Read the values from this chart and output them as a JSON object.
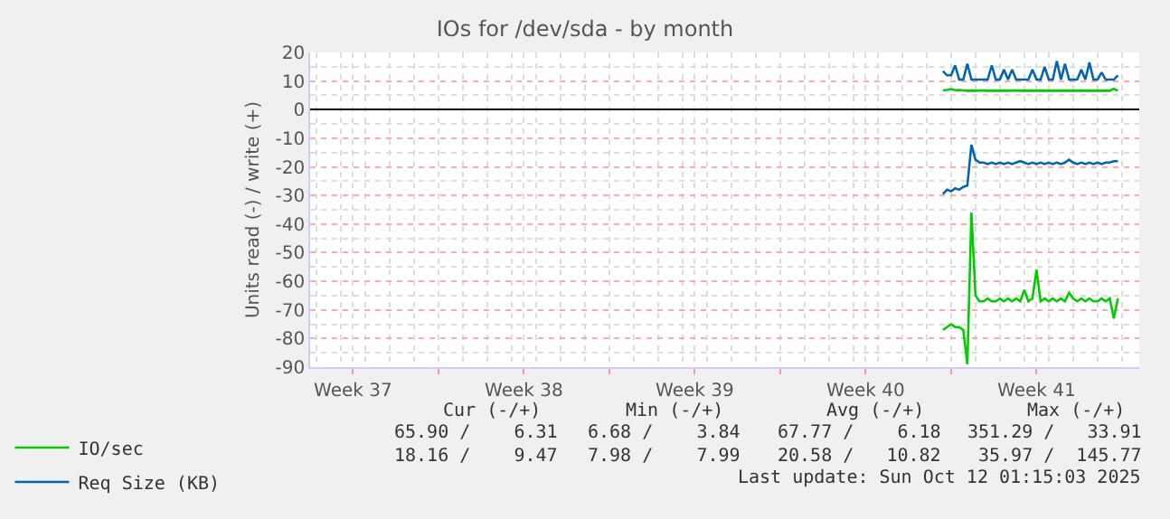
{
  "chart_data": {
    "type": "line",
    "title": "IOs for /dev/sda - by month",
    "ylabel": "Units read (-) / write (+)",
    "x": [
      "2025-10-05T16:00",
      "2025-10-05T20:00",
      "2025-10-06T00:00",
      "2025-10-06T04:00",
      "2025-10-06T08:00",
      "2025-10-06T12:00",
      "2025-10-06T16:00",
      "2025-10-06T20:00",
      "2025-10-07T00:00",
      "2025-10-07T04:00",
      "2025-10-07T08:00",
      "2025-10-07T12:00",
      "2025-10-07T16:00",
      "2025-10-07T20:00",
      "2025-10-08T00:00",
      "2025-10-08T04:00",
      "2025-10-08T08:00",
      "2025-10-08T12:00",
      "2025-10-08T16:00",
      "2025-10-08T20:00",
      "2025-10-09T00:00",
      "2025-10-09T04:00",
      "2025-10-09T08:00",
      "2025-10-09T12:00",
      "2025-10-09T16:00",
      "2025-10-09T20:00",
      "2025-10-10T00:00",
      "2025-10-10T04:00",
      "2025-10-10T08:00",
      "2025-10-10T12:00",
      "2025-10-10T16:00",
      "2025-10-10T20:00",
      "2025-10-11T00:00",
      "2025-10-11T04:00",
      "2025-10-11T08:00",
      "2025-10-11T12:00",
      "2025-10-11T16:00",
      "2025-10-11T20:00",
      "2025-10-12T00:00",
      "2025-10-12T04:00",
      "2025-10-12T08:00",
      "2025-10-12T12:00",
      "2025-10-12T16:00",
      "2025-10-12T20:00"
    ],
    "series": [
      {
        "name": "IO/sec",
        "color": "#00cc00",
        "values": [
          -77,
          -76,
          -75,
          -76,
          -76,
          -77,
          -89,
          -36,
          -65,
          -67,
          -67,
          -66,
          -67,
          -67,
          -66,
          -67,
          -66,
          -67,
          -66,
          -67,
          -63,
          -67,
          -66,
          -56,
          -67,
          -66,
          -67,
          -66,
          -67,
          -66,
          -67,
          -64,
          -66,
          -67,
          -66,
          -67,
          -66,
          -67,
          -67,
          -66,
          -67,
          -66,
          -73,
          -66
        ]
      },
      {
        "color": "#00cc00",
        "values": [
          6.8,
          6.9,
          7.2,
          6.8,
          6.9,
          6.7,
          6.6,
          6.7,
          6.6,
          6.7,
          6.7,
          6.6,
          6.7,
          6.6,
          6.6,
          6.7,
          6.6,
          6.7,
          6.7,
          6.6,
          6.7,
          6.6,
          6.7,
          6.6,
          6.7,
          6.6,
          6.7,
          6.6,
          6.7,
          6.6,
          6.7,
          6.6,
          6.7,
          6.6,
          6.7,
          6.6,
          6.7,
          6.6,
          6.7,
          6.6,
          6.7,
          6.6,
          7.3,
          6.6
        ]
      },
      {
        "name": "Req Size (KB)",
        "color": "#0066b3",
        "values": [
          -29.5,
          -28,
          -28.5,
          -27.5,
          -28,
          -27,
          -26.5,
          -12.3,
          -17.5,
          -18.5,
          -18.5,
          -19,
          -18.5,
          -19,
          -18.5,
          -19,
          -18.5,
          -19,
          -18.5,
          -18,
          -18.5,
          -19,
          -18.5,
          -19,
          -18.5,
          -19,
          -18.5,
          -19,
          -18.5,
          -19,
          -18.5,
          -17.5,
          -18.5,
          -19,
          -18.5,
          -19,
          -18.5,
          -19,
          -18.5,
          -19,
          -18.5,
          -18.5,
          -18,
          -18
        ]
      },
      {
        "color": "#0066b3",
        "values": [
          13.5,
          12,
          12,
          15.5,
          10.5,
          10.5,
          16,
          10.5,
          10.5,
          10.5,
          10.5,
          10.5,
          15.5,
          10.5,
          10.5,
          14,
          10.5,
          14,
          10.5,
          10.5,
          10.5,
          10.5,
          14,
          10.5,
          10.5,
          15,
          10.5,
          10.5,
          17,
          10.5,
          16,
          10.5,
          10.5,
          10.5,
          14,
          10.5,
          16.5,
          10.5,
          10.5,
          13,
          10.5,
          10.5,
          10.5,
          12
        ]
      }
    ],
    "xlim": [
      "2025-09-09T18:00",
      "2025-10-13T17:00"
    ],
    "xticks": [
      {
        "value": "2025-09-11T12:00",
        "label": "Week 37"
      },
      {
        "value": "2025-09-15",
        "label": null
      },
      {
        "value": "2025-09-18T12:00",
        "label": "Week 38"
      },
      {
        "value": "2025-09-22",
        "label": null
      },
      {
        "value": "2025-09-25T12:00",
        "label": "Week 39"
      },
      {
        "value": "2025-09-29",
        "label": null
      },
      {
        "value": "2025-10-02T12:00",
        "label": "Week 40"
      },
      {
        "value": "2025-10-06",
        "label": null
      },
      {
        "value": "2025-10-09T12:00",
        "label": "Week 41"
      }
    ],
    "ylim": [
      -90,
      20
    ],
    "yticks": [
      -90,
      -80,
      -70,
      -60,
      -50,
      -40,
      -30,
      -20,
      -10,
      0,
      10,
      20
    ],
    "grid": true,
    "legend": "bottom left",
    "annotations": [
      "Cur (-/+)",
      "Min (-/+)",
      "Avg (-/+)",
      "Max (-/+)",
      "65.90 /    6.31",
      "6.68 /    3.84",
      "67.77 /    6.18",
      "351.29 /   33.91",
      "18.16 /    9.47",
      "7.98 /    7.99",
      "20.58 /   10.82",
      "35.97 /  145.77",
      "Last update: Sun Oct 12 01:15:03 2025"
    ]
  }
}
